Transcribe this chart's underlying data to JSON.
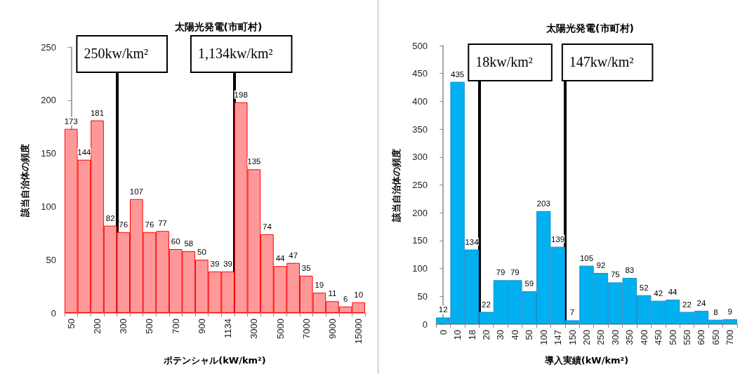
{
  "chart_data": [
    {
      "type": "bar",
      "title": "太陽光発電(市町村)",
      "xlabel": "ポテンシャル(kW/km²)",
      "ylabel": "該当自治体の頻度",
      "categories": [
        "50",
        null,
        "200",
        null,
        "300",
        null,
        "500",
        null,
        "700",
        null,
        "900",
        null,
        "1134",
        null,
        "3000",
        null,
        "5000",
        null,
        "7000",
        null,
        "9000",
        null,
        "15000"
      ],
      "values": [
        173,
        144,
        181,
        82,
        76,
        107,
        76,
        77,
        60,
        58,
        50,
        39,
        39,
        198,
        135,
        74,
        44,
        47,
        35,
        19,
        11,
        6,
        10
      ],
      "color": "#ff9999",
      "ylim": [
        0,
        250
      ],
      "yticks": [
        0,
        50,
        100,
        150,
        200,
        250
      ],
      "data_labels": true,
      "annotations": [
        "250kw/km²",
        "1,134kw/km²"
      ]
    },
    {
      "type": "bar",
      "title": "太陽光発電(市町村)",
      "xlabel": "導入実績(kW/km²)",
      "ylabel": "該当自治体の頻度",
      "categories": [
        "0",
        "10",
        "18",
        "20",
        "30",
        "40",
        "50",
        "100",
        "147",
        "150",
        "200",
        "250",
        "300",
        "350",
        "400",
        "450",
        "500",
        "550",
        "600",
        "650",
        "700"
      ],
      "values": [
        12,
        435,
        134,
        22,
        79,
        79,
        59,
        203,
        139,
        7,
        105,
        92,
        75,
        83,
        52,
        42,
        44,
        22,
        24,
        8,
        9
      ],
      "color": "#00b0f0",
      "ylim": [
        0,
        500
      ],
      "yticks": [
        0,
        50,
        100,
        150,
        200,
        250,
        300,
        350,
        400,
        450,
        500
      ],
      "data_labels": true,
      "annotations": [
        "18kw/km²",
        "147kw/km²"
      ]
    }
  ]
}
